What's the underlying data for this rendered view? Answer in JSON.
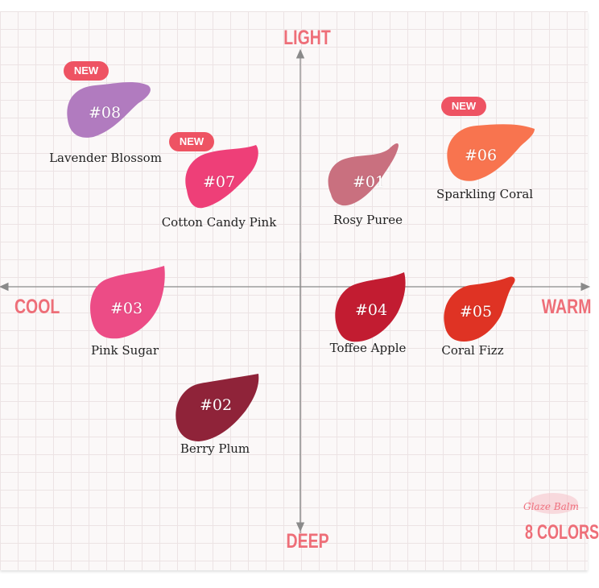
{
  "axes": {
    "top": "LIGHT",
    "bottom": "DEEP",
    "left": "COOL",
    "right": "WARM"
  },
  "badge_text": "NEW",
  "shades": [
    {
      "code": "#08",
      "name": "Lavender Blossom",
      "color": "#b17bbf",
      "new": true
    },
    {
      "code": "#07",
      "name": "Cotton Candy Pink",
      "color": "#ee3f78",
      "new": true
    },
    {
      "code": "#01",
      "name": "Rosy Puree",
      "color": "#c9707f",
      "new": false
    },
    {
      "code": "#06",
      "name": "Sparkling Coral",
      "color": "#f8744f",
      "new": true
    },
    {
      "code": "#03",
      "name": "Pink Sugar",
      "color": "#ec4c86",
      "new": false
    },
    {
      "code": "#04",
      "name": "Toffee Apple",
      "color": "#c21c31",
      "new": false
    },
    {
      "code": "#05",
      "name": "Coral Fizz",
      "color": "#df3324",
      "new": false
    },
    {
      "code": "#02",
      "name": "Berry Plum",
      "color": "#8f2339",
      "new": false
    }
  ],
  "brand": {
    "product": "Glaze Balm",
    "count": "8 COLORS"
  }
}
